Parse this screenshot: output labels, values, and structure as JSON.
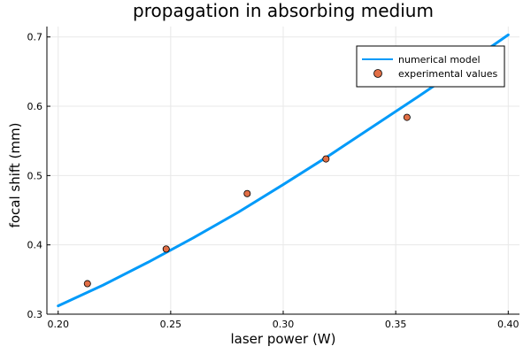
{
  "chart_data": {
    "type": "line",
    "title": "propagation in absorbing medium",
    "xlabel": "laser power (W)",
    "ylabel": "focal shift (mm)",
    "xlim": [
      0.195,
      0.405
    ],
    "ylim": [
      0.3,
      0.715
    ],
    "xticks": [
      0.2,
      0.25,
      0.3,
      0.35,
      0.4
    ],
    "xtick_labels": [
      "0.20",
      "0.25",
      "0.30",
      "0.35",
      "0.40"
    ],
    "yticks": [
      0.3,
      0.4,
      0.5,
      0.6,
      0.7
    ],
    "ytick_labels": [
      "0.3",
      "0.4",
      "0.5",
      "0.6",
      "0.7"
    ],
    "grid": true,
    "legend": "top-right",
    "series": [
      {
        "name": "numerical model",
        "kind": "line",
        "color": "#009AF9",
        "x": [
          0.2,
          0.22,
          0.24,
          0.26,
          0.28,
          0.3,
          0.32,
          0.34,
          0.36,
          0.38,
          0.4
        ],
        "y": [
          0.312,
          0.342,
          0.375,
          0.41,
          0.447,
          0.487,
          0.528,
          0.571,
          0.614,
          0.658,
          0.703
        ]
      },
      {
        "name": "experimental values",
        "kind": "scatter",
        "color": "#E26F46",
        "x": [
          0.213,
          0.248,
          0.284,
          0.319,
          0.355
        ],
        "y": [
          0.344,
          0.394,
          0.474,
          0.524,
          0.584
        ]
      }
    ]
  }
}
